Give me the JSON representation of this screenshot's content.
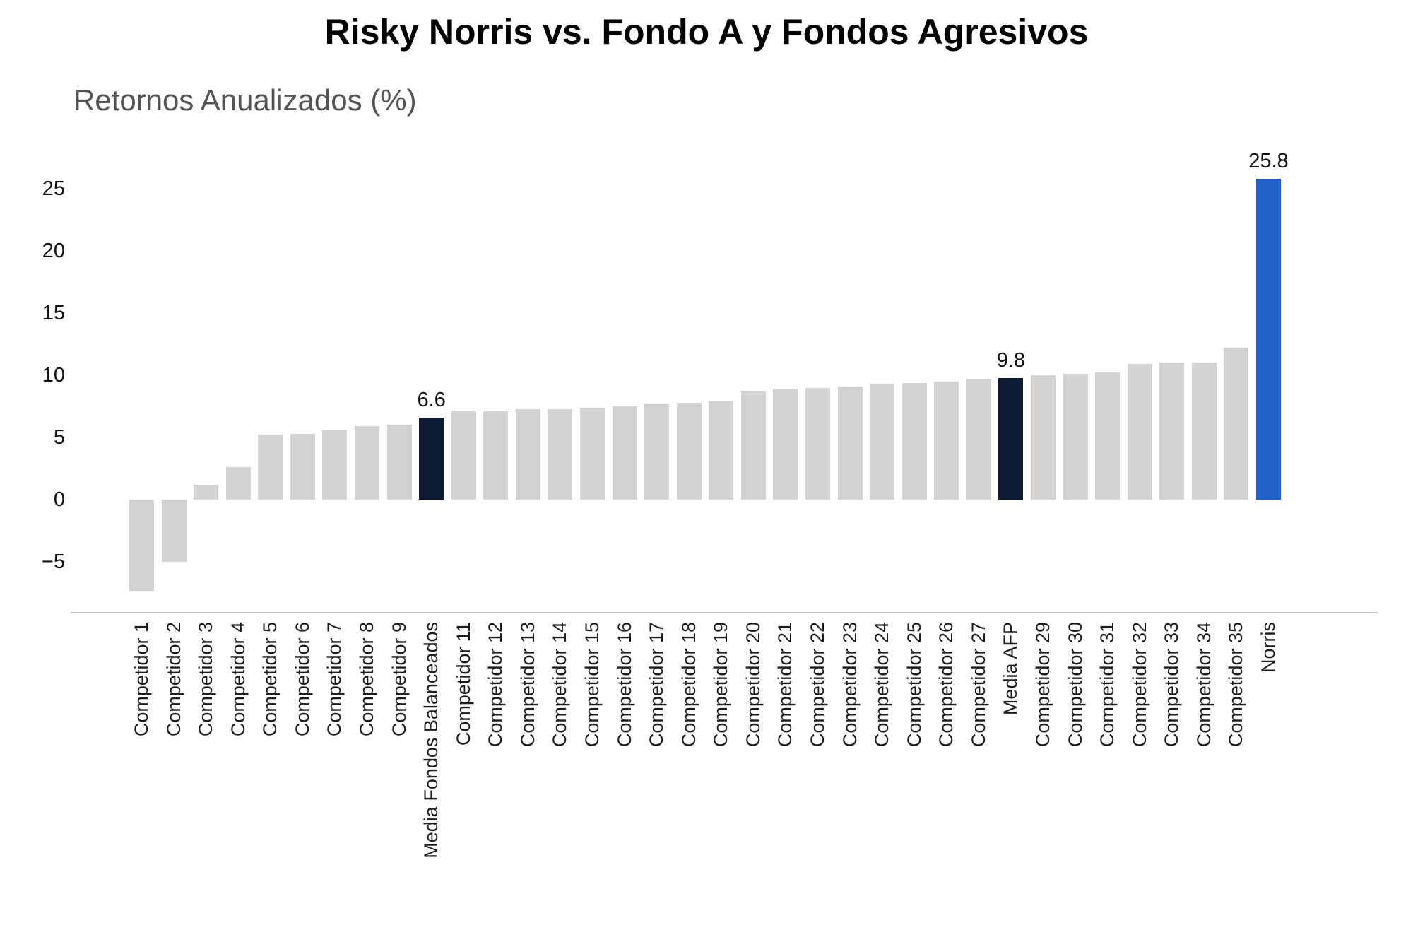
{
  "colors": {
    "gray": "#d3d3d3",
    "dark": "#0c1a33",
    "blue": "#2061c9",
    "axis_line": "#c8c8c8",
    "subtitle_text": "#545454",
    "label_text": "#111111"
  },
  "chart_data": {
    "type": "bar",
    "title": "Risky Norris vs. Fondo A y Fondos Agresivos",
    "y_axis_title": "Retornos Anualizados (%)",
    "xlabel": "",
    "ylabel": "Retornos Anualizados (%)",
    "grid": false,
    "legend": false,
    "ylim": [
      -9.1,
      30.5
    ],
    "yticks": [
      {
        "value": 25,
        "label": "25"
      },
      {
        "value": 20,
        "label": "20"
      },
      {
        "value": 15,
        "label": "15"
      },
      {
        "value": 10,
        "label": "10"
      },
      {
        "value": 5,
        "label": "5"
      },
      {
        "value": 0,
        "label": "0"
      },
      {
        "value": -5,
        "label": "−5"
      }
    ],
    "bars": [
      {
        "label": "Competidor 1",
        "value": -7.4,
        "color": "gray"
      },
      {
        "label": "Competidor 2",
        "value": -5.0,
        "color": "gray"
      },
      {
        "label": "Competidor 3",
        "value": 1.2,
        "color": "gray"
      },
      {
        "label": "Competidor 4",
        "value": 2.6,
        "color": "gray"
      },
      {
        "label": "Competidor 5",
        "value": 5.2,
        "color": "gray"
      },
      {
        "label": "Competidor 6",
        "value": 5.3,
        "color": "gray"
      },
      {
        "label": "Competidor 7",
        "value": 5.6,
        "color": "gray"
      },
      {
        "label": "Competidor 8",
        "value": 5.9,
        "color": "gray"
      },
      {
        "label": "Competidor 9",
        "value": 6.0,
        "color": "gray"
      },
      {
        "label": "Media Fondos Balanceados",
        "value": 6.6,
        "color": "dark",
        "value_label": "6.6"
      },
      {
        "label": "Competidor 11",
        "value": 7.1,
        "color": "gray"
      },
      {
        "label": "Competidor 12",
        "value": 7.1,
        "color": "gray"
      },
      {
        "label": "Competidor 13",
        "value": 7.3,
        "color": "gray"
      },
      {
        "label": "Competidor 14",
        "value": 7.3,
        "color": "gray"
      },
      {
        "label": "Competidor 15",
        "value": 7.4,
        "color": "gray"
      },
      {
        "label": "Competidor 16",
        "value": 7.5,
        "color": "gray"
      },
      {
        "label": "Competidor 17",
        "value": 7.7,
        "color": "gray"
      },
      {
        "label": "Competidor 18",
        "value": 7.8,
        "color": "gray"
      },
      {
        "label": "Competidor 19",
        "value": 7.9,
        "color": "gray"
      },
      {
        "label": "Competidor 20",
        "value": 8.7,
        "color": "gray"
      },
      {
        "label": "Competidor 21",
        "value": 8.9,
        "color": "gray"
      },
      {
        "label": "Competidor 22",
        "value": 9.0,
        "color": "gray"
      },
      {
        "label": "Competidor 23",
        "value": 9.1,
        "color": "gray"
      },
      {
        "label": "Competidor 24",
        "value": 9.3,
        "color": "gray"
      },
      {
        "label": "Competidor 25",
        "value": 9.4,
        "color": "gray"
      },
      {
        "label": "Competidor 26",
        "value": 9.5,
        "color": "gray"
      },
      {
        "label": "Competidor 27",
        "value": 9.7,
        "color": "gray"
      },
      {
        "label": "Media AFP",
        "value": 9.8,
        "color": "dark",
        "value_label": "9.8"
      },
      {
        "label": "Competidor 29",
        "value": 10.0,
        "color": "gray"
      },
      {
        "label": "Competidor 30",
        "value": 10.1,
        "color": "gray"
      },
      {
        "label": "Competidor 31",
        "value": 10.2,
        "color": "gray"
      },
      {
        "label": "Competidor 32",
        "value": 10.9,
        "color": "gray"
      },
      {
        "label": "Competidor 33",
        "value": 11.0,
        "color": "gray"
      },
      {
        "label": "Competidor 34",
        "value": 11.0,
        "color": "gray"
      },
      {
        "label": "Competidor 35",
        "value": 12.2,
        "color": "gray"
      },
      {
        "label": "Norris",
        "value": 25.8,
        "color": "blue",
        "value_label": "25.8"
      }
    ]
  }
}
